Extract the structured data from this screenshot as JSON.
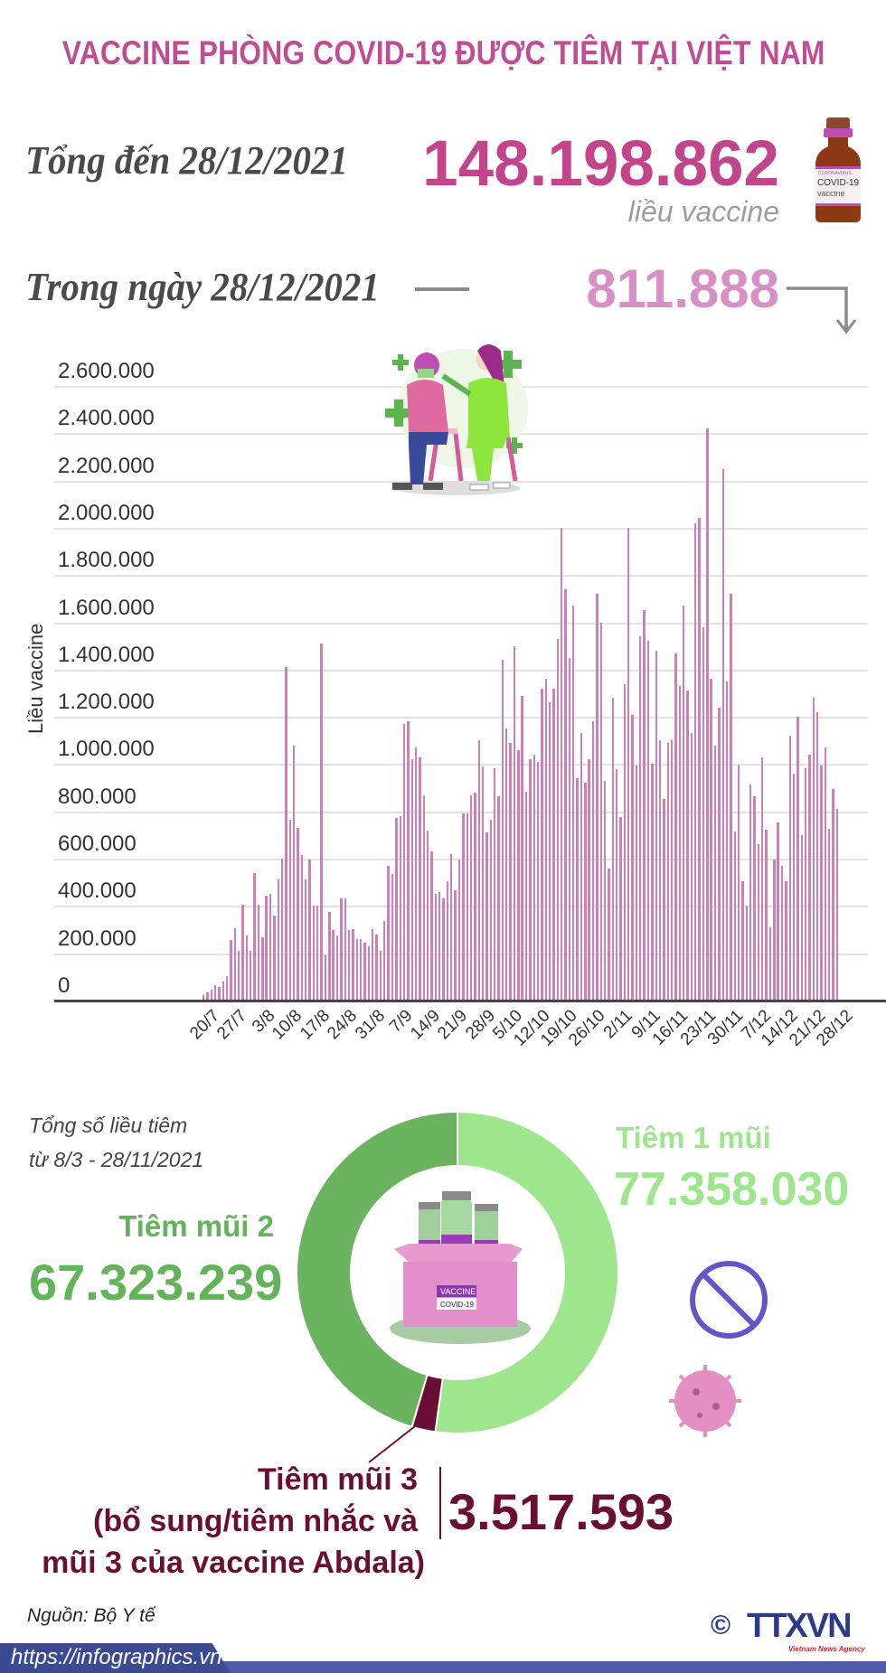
{
  "title": "VACCINE PHÒNG COVID-19 ĐƯỢC TIÊM TẠI VIỆT NAM",
  "total": {
    "label": "Tổng đến 28/12/2021",
    "value": "148.198.862",
    "unit": "liều vaccine"
  },
  "daily": {
    "label": "Trong ngày 28/12/2021",
    "value": "811.888"
  },
  "vial_label": {
    "line1": "CORONAVIRUS",
    "line2": "COVID-19",
    "line3": "vaccine"
  },
  "colors": {
    "title": "#c04d93",
    "bar": "#cf7fb8",
    "dose1": "#9ee68e",
    "dose2": "#6ab35f",
    "dose3": "#6a0f33",
    "footer": "#3c4a94"
  },
  "chart_data": {
    "type": "bar",
    "title": "",
    "ylabel": "Liều vaccine",
    "xlabel": "",
    "ylim": [
      0,
      2600000
    ],
    "yticks": [
      "0",
      "200.000",
      "400.000",
      "600.000",
      "800.000",
      "1.000.000",
      "1.200.000",
      "1.400.000",
      "1.600.000",
      "1.800.000",
      "2.000.000",
      "2.200.000",
      "2.400.000",
      "2.600.000"
    ],
    "xticks": [
      "20/7",
      "27/7",
      "3/8",
      "10/8",
      "17/8",
      "24/8",
      "31/8",
      "7/9",
      "14/9",
      "21/9",
      "28/9",
      "5/10",
      "12/10",
      "19/10",
      "26/10",
      "2/11",
      "9/11",
      "16/11",
      "23/11",
      "30/11",
      "7/12",
      "14/12",
      "21/12",
      "28/12"
    ],
    "x_range": [
      "20/7/2021",
      "28/12/2021"
    ],
    "grid": true,
    "values": [
      23000,
      33000,
      44000,
      65000,
      58000,
      79000,
      105000,
      258000,
      307000,
      209000,
      407000,
      277000,
      212000,
      539000,
      407000,
      267000,
      444000,
      451000,
      358000,
      514000,
      602000,
      1410000,
      765000,
      1080000,
      732000,
      614000,
      511000,
      595000,
      400000,
      400000,
      1510000,
      191000,
      374000,
      298000,
      274000,
      432000,
      432000,
      298000,
      302000,
      261000,
      261000,
      244000,
      230000,
      302000,
      281000,
      212000,
      335000,
      570000,
      535000,
      772000,
      780000,
      1170000,
      1180000,
      1020000,
      1070000,
      1030000,
      868000,
      718000,
      632000,
      453000,
      458000,
      432000,
      504000,
      619000,
      465000,
      595000,
      790000,
      790000,
      868000,
      879000,
      1100000,
      989000,
      711000,
      765000,
      984000,
      865000,
      1440000,
      1150000,
      1090000,
      1500000,
      1060000,
      1290000,
      884000,
      1020000,
      1040000,
      1010000,
      1320000,
      1360000,
      1260000,
      1320000,
      1530000,
      2000000,
      1740000,
      1450000,
      1670000,
      939000,
      1130000,
      921000,
      1020000,
      1180000,
      1720000,
      1600000,
      930000,
      558000,
      1280000,
      977000,
      775000,
      1340000,
      2000000,
      1210000,
      995000,
      1540000,
      1650000,
      1520000,
      1000000,
      1480000,
      1100000,
      853000,
      1090000,
      1100000,
      1470000,
      1330000,
      1670000,
      1310000,
      1130000,
      2020000,
      2040000,
      1580000,
      2420000,
      1360000,
      1080000,
      1240000,
      2250000,
      1350000,
      1720000,
      716000,
      998000,
      505000,
      400000,
      914000,
      863000,
      663000,
      1030000,
      723000,
      309000,
      595000,
      753000,
      570000,
      505000,
      1120000,
      961000,
      1200000,
      698000,
      984000,
      1040000,
      1280000,
      1220000,
      995000,
      1070000,
      728000,
      895000,
      811888
    ]
  },
  "donut": {
    "caption_line1": "Tổng số liều tiêm",
    "caption_line2": "từ 8/3 - 28/11/2021",
    "box_label1": "VACCINE",
    "box_label2": "COVID-19",
    "slices": [
      {
        "label": "Tiêm 1 mũi",
        "value": 77358030,
        "display": "77.358.030"
      },
      {
        "label": "Tiêm mũi 3",
        "value": 3517593,
        "display": "3.517.593"
      },
      {
        "label": "Tiêm mũi 2",
        "value": 67323239,
        "display": "67.323.239"
      }
    ],
    "dose3_note_line1": "(bổ sung/tiêm nhắc và",
    "dose3_note_line2": "mũi 3 của vaccine Abdala)"
  },
  "source": "Nguồn: Bộ Y tế",
  "footer": {
    "url": "https://infographics.vn",
    "copyright": "©",
    "logo": "TTXVN",
    "logo_sub": "Vietnam News Agency"
  }
}
